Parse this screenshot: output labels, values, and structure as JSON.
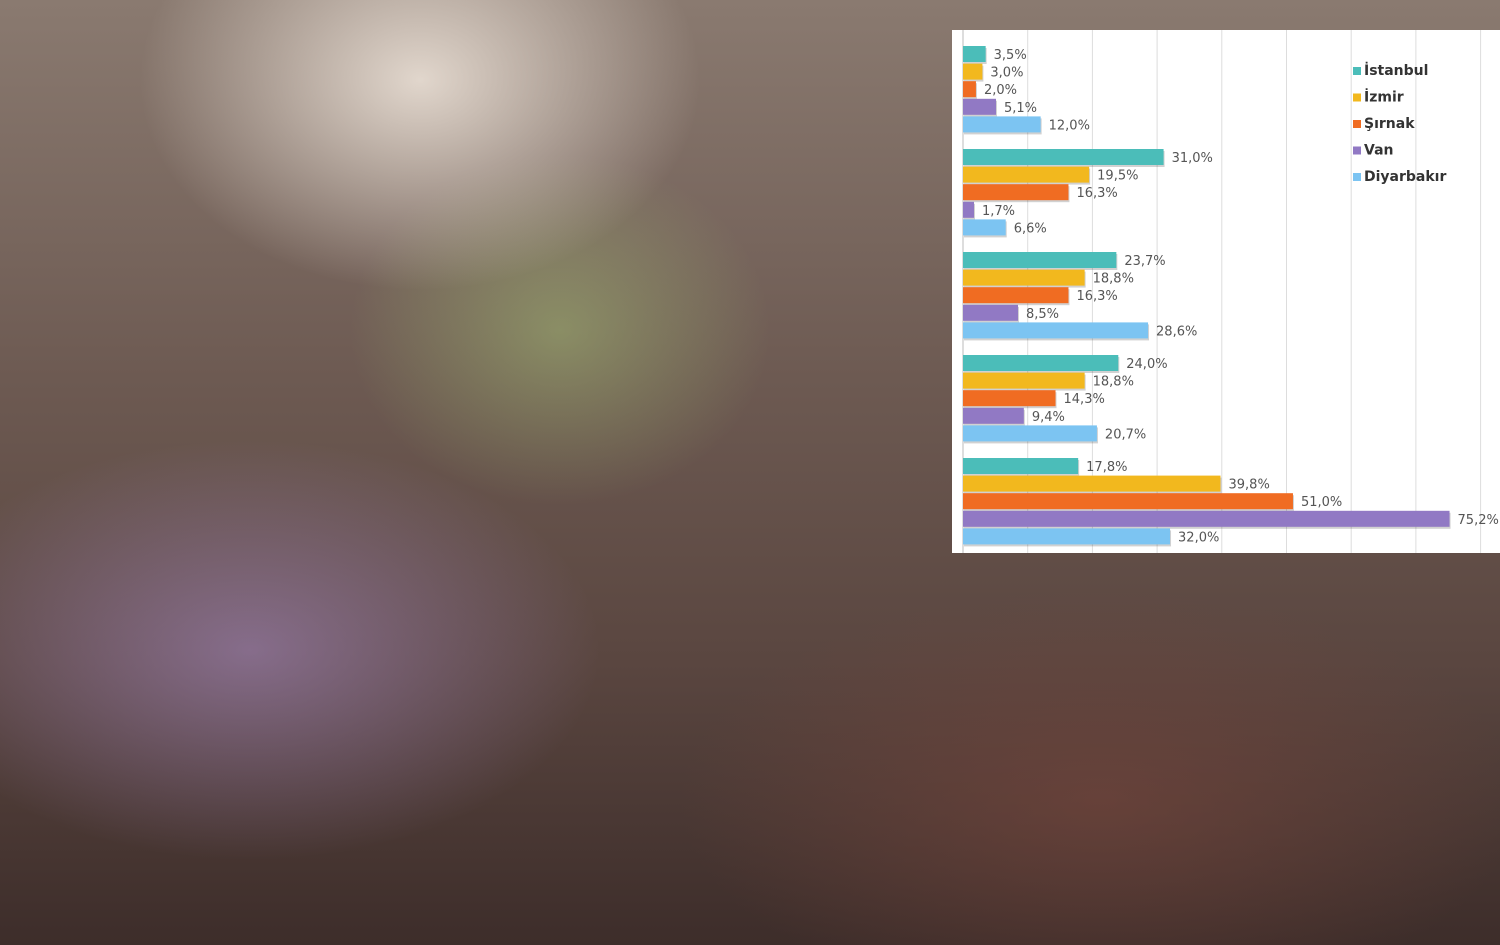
{
  "chart_data": {
    "type": "bar",
    "orientation": "horizontal",
    "categories": [
      "",
      "",
      "",
      "",
      ""
    ],
    "series": [
      {
        "name": "İstanbul",
        "color": "#4bbdb9",
        "values": [
          3.5,
          31.0,
          23.7,
          24.0,
          17.8
        ],
        "labels": [
          "3,5%",
          "31,0%",
          "23,7%",
          "24,0%",
          "17,8%"
        ]
      },
      {
        "name": "İzmir",
        "color": "#f2b81e",
        "values": [
          3.0,
          19.5,
          18.8,
          18.8,
          39.8
        ],
        "labels": [
          "3,0%",
          "19,5%",
          "18,8%",
          "18,8%",
          "39,8%"
        ]
      },
      {
        "name": "Şırnak",
        "color": "#f06c22",
        "values": [
          2.0,
          16.3,
          16.3,
          14.3,
          51.0
        ],
        "labels": [
          "2,0%",
          "16,3%",
          "16,3%",
          "14,3%",
          "51,0%"
        ]
      },
      {
        "name": "Van",
        "color": "#9179c4",
        "values": [
          5.1,
          1.7,
          8.5,
          9.4,
          75.2
        ],
        "labels": [
          "5,1%",
          "1,7%",
          "8,5%",
          "9,4%",
          "75,2%"
        ]
      },
      {
        "name": "Diyarbakır",
        "color": "#7cc4f2",
        "values": [
          12.0,
          6.6,
          28.6,
          20.7,
          32.0
        ],
        "labels": [
          "12,0%",
          "6,6%",
          "28,6%",
          "20,7%",
          "32,0%"
        ]
      }
    ],
    "xlim": [
      0,
      80
    ],
    "grid": true,
    "legend": "top-right"
  },
  "background": "crowd photo at a color festival"
}
